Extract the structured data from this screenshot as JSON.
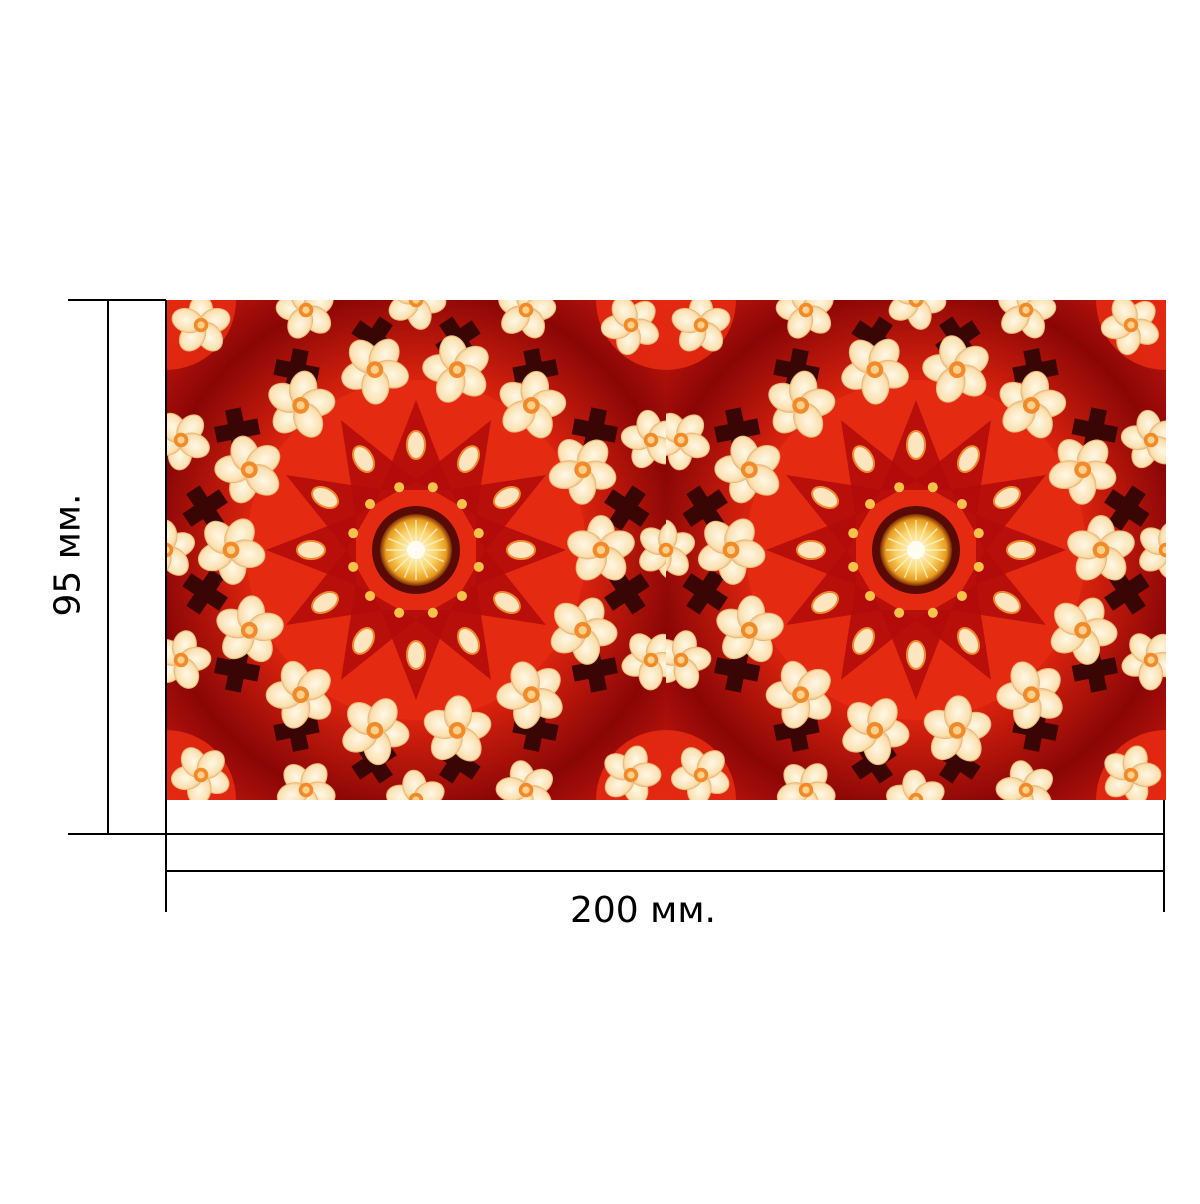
{
  "dimensions": {
    "width_label": "200 мм.",
    "height_label": "95 мм."
  },
  "tiles": [
    {
      "name": "left",
      "motif": "kaleidoscope-flower-mandala"
    },
    {
      "name": "right",
      "motif": "kaleidoscope-flower-mandala"
    }
  ],
  "colors": {
    "background": "#ffffff",
    "line": "#000000",
    "deep_red": "#b00a0a",
    "red": "#e52a12",
    "orange": "#f08a2a",
    "cream": "#fde6bf",
    "dark_maroon": "#3a0505",
    "gold": "#f6c24a"
  }
}
